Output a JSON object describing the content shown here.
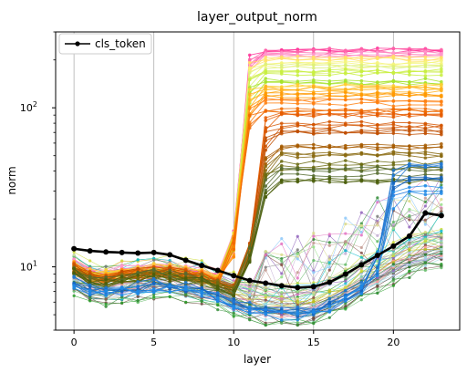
{
  "chart_data": {
    "type": "line",
    "title": "layer_output_norm",
    "xlabel": "layer",
    "ylabel": "norm",
    "xlim": [
      -1.15,
      24.15
    ],
    "ylim": [
      4.0,
      300.0
    ],
    "yscale": "log",
    "x_ticks": [
      0,
      5,
      10,
      15,
      20
    ],
    "y_major_ticks": [
      {
        "value": 10,
        "base": "10",
        "exp": "1"
      },
      {
        "value": 100,
        "base": "10",
        "exp": "2"
      }
    ],
    "grid": {
      "x": true,
      "y": false
    },
    "legend": {
      "placement": "top-left",
      "entries": [
        "cls_token"
      ]
    },
    "x": [
      0,
      1,
      2,
      3,
      4,
      5,
      6,
      7,
      8,
      9,
      10,
      11,
      12,
      13,
      14,
      15,
      16,
      17,
      18,
      19,
      20,
      21,
      22,
      23
    ],
    "series": [
      {
        "name": "cls_token",
        "color": "#000000",
        "values": [
          13.0,
          12.6,
          12.4,
          12.3,
          12.2,
          12.3,
          11.9,
          11.0,
          10.2,
          9.5,
          8.8,
          8.2,
          7.9,
          7.6,
          7.4,
          7.5,
          8.0,
          9.0,
          10.3,
          11.8,
          13.5,
          15.6,
          21.8,
          21.0
        ]
      }
    ],
    "background_series": {
      "count": 96,
      "styles": [
        "thin colored lines with small point markers"
      ],
      "groups": [
        {
          "color": "#ff3399",
          "jump_layer": 11,
          "base": 9.5,
          "plateau": 235
        },
        {
          "color": "#ff66aa",
          "jump_layer": 11,
          "base": 9.3,
          "plateau": 225
        },
        {
          "color": "#ff99cc",
          "jump_layer": 11,
          "base": 9.6,
          "plateau": 215
        },
        {
          "color": "#ffe066",
          "jump_layer": 11,
          "base": 9.0,
          "plateau": 205
        },
        {
          "color": "#f5f57a",
          "jump_layer": 11,
          "base": 9.2,
          "plateau": 190
        },
        {
          "color": "#dcf07a",
          "jump_layer": 11,
          "base": 8.8,
          "plateau": 178
        },
        {
          "color": "#c8ee40",
          "jump_layer": 11,
          "base": 9.1,
          "plateau": 165
        },
        {
          "color": "#a6e32a",
          "jump_layer": 11,
          "base": 8.9,
          "plateau": 150
        },
        {
          "color": "#ffcc33",
          "jump_layer": 11,
          "base": 9.4,
          "plateau": 140
        },
        {
          "color": "#ffb020",
          "jump_layer": 11,
          "base": 9.0,
          "plateau": 130
        },
        {
          "color": "#ff9900",
          "jump_layer": 11,
          "base": 8.7,
          "plateau": 120
        },
        {
          "color": "#ff7f0e",
          "jump_layer": 11,
          "base": 9.2,
          "plateau": 110
        },
        {
          "color": "#f06a00",
          "jump_layer": 11,
          "base": 8.8,
          "plateau": 100
        },
        {
          "color": "#e65c00",
          "jump_layer": 12,
          "base": 8.6,
          "plateau": 90
        },
        {
          "color": "#d45500",
          "jump_layer": 12,
          "base": 9.0,
          "plateau": 80
        },
        {
          "color": "#c04d00",
          "jump_layer": 12,
          "base": 8.9,
          "plateau": 72
        },
        {
          "color": "#a65a00",
          "jump_layer": 12,
          "base": 8.5,
          "plateau": 58
        },
        {
          "color": "#8a6a10",
          "jump_layer": 12,
          "base": 8.7,
          "plateau": 52
        },
        {
          "color": "#6b6b10",
          "jump_layer": 12,
          "base": 8.4,
          "plateau": 44
        },
        {
          "color": "#556b2f",
          "jump_layer": 12,
          "base": 8.6,
          "plateau": 40
        },
        {
          "color": "#4a5e0a",
          "jump_layer": 12,
          "base": 8.3,
          "plateau": 36
        },
        {
          "color": "#1f77d4",
          "jump_layer": 20,
          "base": 7.5,
          "plateau": 42
        },
        {
          "color": "#1565c0",
          "jump_layer": 20,
          "base": 7.2,
          "plateau": 36
        },
        {
          "color": "#1e88e5",
          "jump_layer": 20,
          "base": 7.0,
          "plateau": 31
        }
      ],
      "palette_low": [
        "#9467bd",
        "#8c564b",
        "#2ca02c",
        "#17becf",
        "#bcbd22",
        "#7f7f7f",
        "#e377c2",
        "#aec7e8",
        "#98df8a",
        "#ff9896",
        "#c5b0d5",
        "#c49c94",
        "#9edae5",
        "#dbdb8d",
        "#2e7d32",
        "#388e3c",
        "#6d4c41",
        "#5d4037",
        "#90caf9",
        "#80cbc4",
        "#66bb6a",
        "#cddc39"
      ]
    }
  }
}
